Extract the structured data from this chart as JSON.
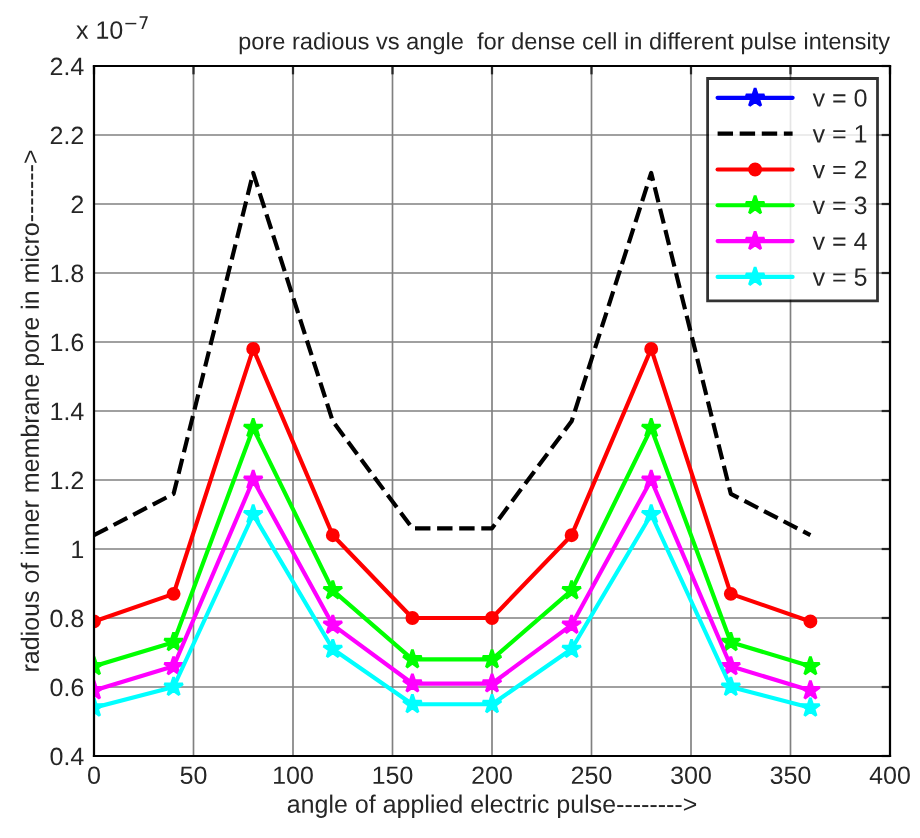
{
  "chart_data": {
    "type": "line",
    "title": "pore radious vs angle  for dense cell in different pulse intensity",
    "xlabel": "angle of applied electric pulse-------->",
    "ylabel": "radious of inner membrane pore in micro------->",
    "annotations": [
      "x 10$^{−7}$"
    ],
    "x": [
      0,
      40,
      80,
      120,
      160,
      200,
      240,
      280,
      320,
      360
    ],
    "series": [
      {
        "name": "v = 0",
        "color": "#0000ff",
        "marker": "star",
        "line_style": "solid",
        "values": [
          null,
          null,
          null,
          null,
          null,
          null,
          null,
          null,
          null,
          null
        ]
      },
      {
        "name": "v = 1",
        "color": "#000000",
        "marker": "none",
        "line_style": "dashed",
        "values": [
          1.04,
          1.16,
          2.09,
          1.37,
          1.06,
          1.06,
          1.37,
          2.09,
          1.16,
          1.04
        ]
      },
      {
        "name": "v = 2",
        "color": "#ff0000",
        "marker": "circle",
        "line_style": "solid",
        "values": [
          0.79,
          0.87,
          1.58,
          1.04,
          0.8,
          0.8,
          1.04,
          1.58,
          0.87,
          0.79
        ]
      },
      {
        "name": "v = 3",
        "color": "#00ff00",
        "marker": "star",
        "line_style": "solid",
        "values": [
          0.66,
          0.73,
          1.35,
          0.88,
          0.68,
          0.68,
          0.88,
          1.35,
          0.73,
          0.66
        ]
      },
      {
        "name": "v = 4",
        "color": "#ff00ff",
        "marker": "star",
        "line_style": "solid",
        "values": [
          0.59,
          0.66,
          1.2,
          0.78,
          0.61,
          0.61,
          0.78,
          1.2,
          0.66,
          0.59
        ]
      },
      {
        "name": "v = 5",
        "color": "#00ffff",
        "marker": "star",
        "line_style": "solid",
        "values": [
          0.54,
          0.6,
          1.1,
          0.71,
          0.55,
          0.55,
          0.71,
          1.1,
          0.6,
          0.54
        ]
      }
    ],
    "xlim": [
      0,
      400
    ],
    "xticks": [
      0,
      50,
      100,
      150,
      200,
      250,
      300,
      350,
      400
    ],
    "ylim": [
      0.4,
      2.4
    ],
    "yticks": [
      0.4,
      0.6,
      0.8,
      1,
      1.2,
      1.4,
      1.6,
      1.8,
      2,
      2.2,
      2.4
    ],
    "grid": true,
    "legend": "top right"
  }
}
